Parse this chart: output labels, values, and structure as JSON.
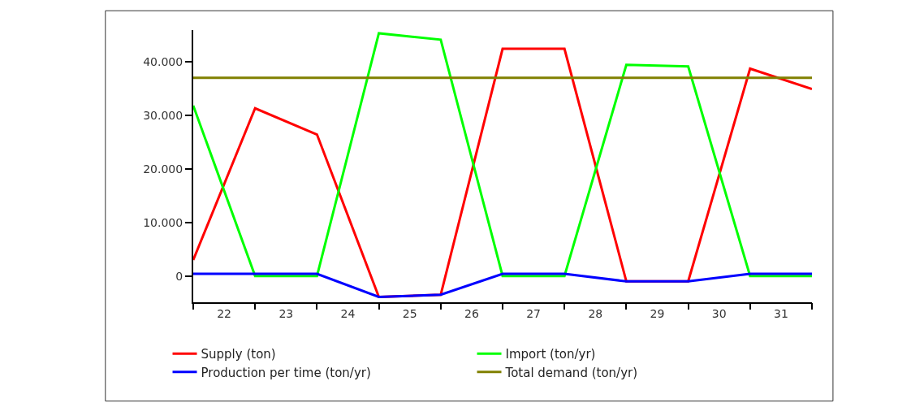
{
  "chart_data": {
    "type": "line",
    "x": [
      21.5,
      22.5,
      23.5,
      24.5,
      25.5,
      26.5,
      27.5,
      28.5,
      29.5,
      30.5,
      31.5
    ],
    "series": [
      {
        "name": "Supply (ton)",
        "color": "#ff0000",
        "values": [
          3000,
          31300,
          26400,
          -3900,
          -3500,
          42400,
          42400,
          -1000,
          -1000,
          38700,
          34900
        ]
      },
      {
        "name": "Import (ton/yr)",
        "color": "#00ff00",
        "values": [
          31800,
          0,
          0,
          45300,
          44100,
          0,
          0,
          39400,
          39100,
          0,
          0
        ]
      },
      {
        "name": "Production per time (ton/yr)",
        "color": "#0000ff",
        "values": [
          400,
          400,
          400,
          -3900,
          -3500,
          400,
          400,
          -1000,
          -1000,
          400,
          400
        ]
      },
      {
        "name": "Total demand (ton/yr)",
        "color": "#808000",
        "values": [
          37000,
          37000,
          37000,
          37000,
          37000,
          37000,
          37000,
          37000,
          37000,
          37000,
          37000
        ]
      }
    ],
    "xlim": [
      21.5,
      31.5
    ],
    "xticks": [
      {
        "value": 21.5,
        "label": null
      },
      {
        "value": 22,
        "label": "22"
      },
      {
        "value": 22.5,
        "label": null
      },
      {
        "value": 23,
        "label": "23"
      },
      {
        "value": 23.5,
        "label": null
      },
      {
        "value": 24,
        "label": "24"
      },
      {
        "value": 24.5,
        "label": null
      },
      {
        "value": 25,
        "label": "25"
      },
      {
        "value": 25.5,
        "label": null
      },
      {
        "value": 26,
        "label": "26"
      },
      {
        "value": 26.5,
        "label": null
      },
      {
        "value": 27,
        "label": "27"
      },
      {
        "value": 27.5,
        "label": null
      },
      {
        "value": 28,
        "label": "28"
      },
      {
        "value": 28.5,
        "label": null
      },
      {
        "value": 29,
        "label": "29"
      },
      {
        "value": 29.5,
        "label": null
      },
      {
        "value": 30,
        "label": "30"
      },
      {
        "value": 30.5,
        "label": null
      },
      {
        "value": 31,
        "label": "31"
      },
      {
        "value": 31.5,
        "label": null
      }
    ],
    "ylim": [
      -4900,
      45900
    ],
    "yticks": [
      0,
      {
        "value": 10000,
        "label": "10.000"
      },
      {
        "value": 20000,
        "label": "20.000"
      },
      {
        "value": 30000,
        "label": "30.000"
      },
      {
        "value": 40000,
        "label": "40.000"
      }
    ],
    "legend": "bottom",
    "marker": "none",
    "line_style": "solid"
  }
}
